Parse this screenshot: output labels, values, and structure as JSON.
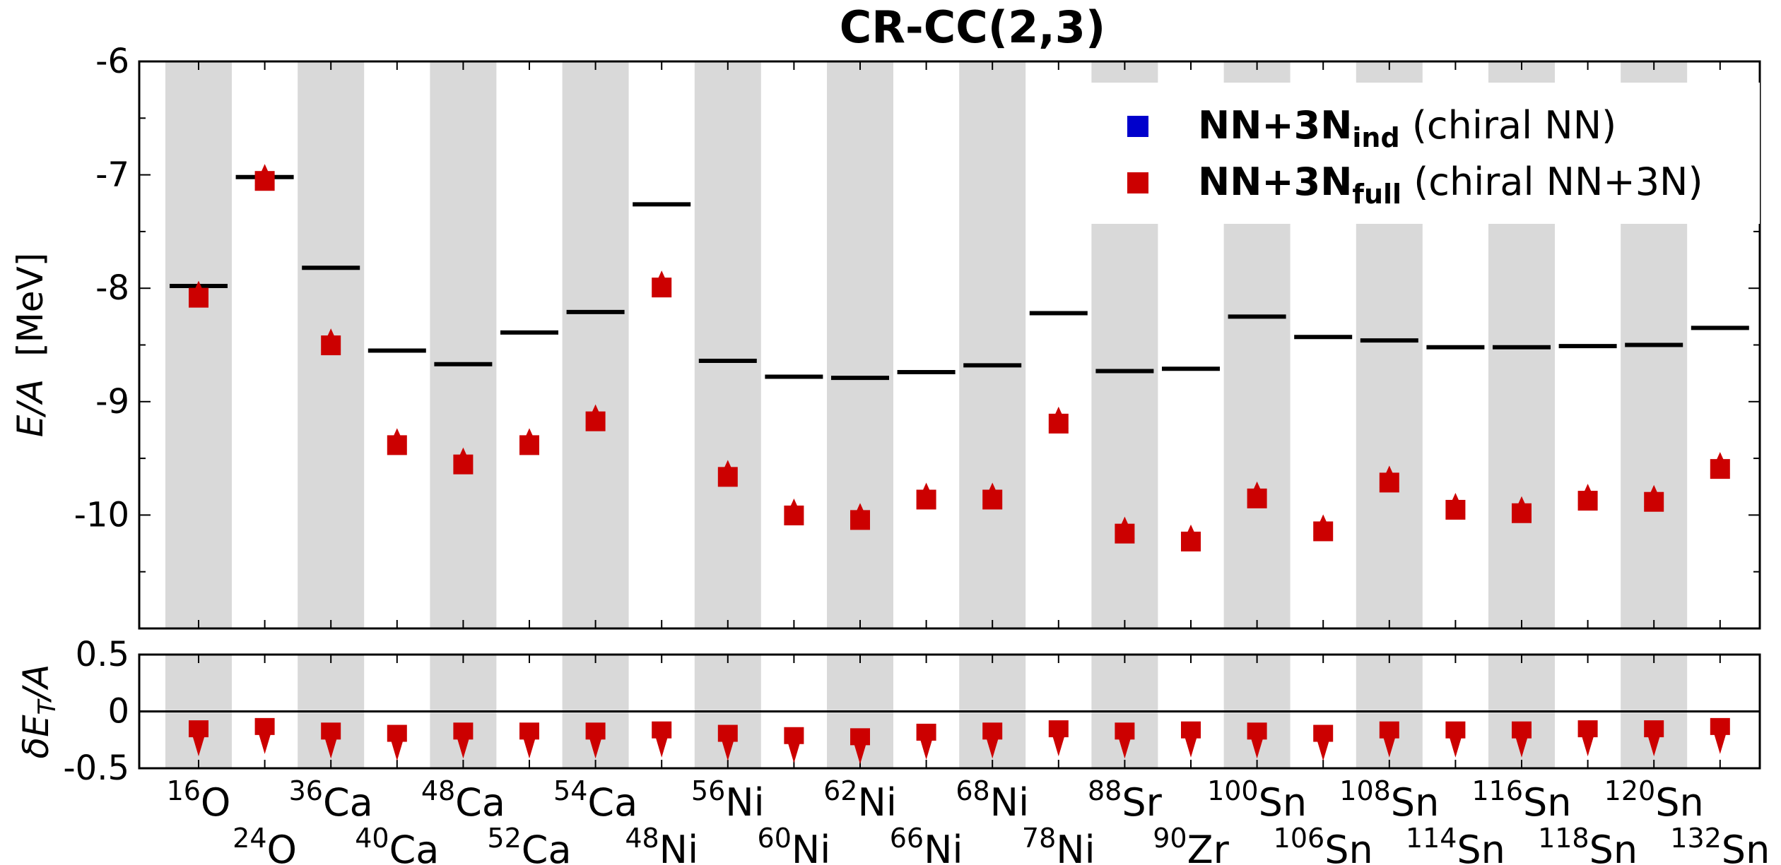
{
  "chart_data": {
    "type": "scatter",
    "title": "CR-CC(2,3)",
    "nuclei": [
      {
        "mass": "16",
        "element": "O"
      },
      {
        "mass": "24",
        "element": "O"
      },
      {
        "mass": "36",
        "element": "Ca"
      },
      {
        "mass": "40",
        "element": "Ca"
      },
      {
        "mass": "48",
        "element": "Ca"
      },
      {
        "mass": "52",
        "element": "Ca"
      },
      {
        "mass": "54",
        "element": "Ca"
      },
      {
        "mass": "48",
        "element": "Ni"
      },
      {
        "mass": "56",
        "element": "Ni"
      },
      {
        "mass": "60",
        "element": "Ni"
      },
      {
        "mass": "62",
        "element": "Ni"
      },
      {
        "mass": "66",
        "element": "Ni"
      },
      {
        "mass": "68",
        "element": "Ni"
      },
      {
        "mass": "78",
        "element": "Ni"
      },
      {
        "mass": "88",
        "element": "Sr"
      },
      {
        "mass": "90",
        "element": "Zr"
      },
      {
        "mass": "100",
        "element": "Sn"
      },
      {
        "mass": "106",
        "element": "Sn"
      },
      {
        "mass": "108",
        "element": "Sn"
      },
      {
        "mass": "114",
        "element": "Sn"
      },
      {
        "mass": "116",
        "element": "Sn"
      },
      {
        "mass": "118",
        "element": "Sn"
      },
      {
        "mass": "120",
        "element": "Sn"
      },
      {
        "mass": "132",
        "element": "Sn"
      }
    ],
    "top_panel": {
      "ylabel": "E/A  [MeV]",
      "ylim": [
        -11.0,
        -6.0
      ],
      "yticks": [
        -6,
        -7,
        -8,
        -9,
        -10
      ],
      "experiment": [
        -7.98,
        -7.02,
        -7.82,
        -8.55,
        -8.67,
        -8.39,
        -8.21,
        -7.26,
        -8.64,
        -8.78,
        -8.79,
        -8.74,
        -8.68,
        -8.22,
        -8.73,
        -8.71,
        -8.25,
        -8.43,
        -8.46,
        -8.52,
        -8.52,
        -8.51,
        -8.5,
        -8.35
      ],
      "series": [
        {
          "name": "NN+3N",
          "subscript": "ind",
          "suffix": " (chiral NN)",
          "color": "#0000cc",
          "values": []
        },
        {
          "name": "NN+3N",
          "subscript": "full",
          "suffix": " (chiral NN+3N)",
          "color": "#cc0000",
          "values": [
            -8.04,
            -7.01,
            -8.46,
            -9.34,
            -9.51,
            -9.34,
            -9.13,
            -7.95,
            -9.62,
            -9.96,
            -10.0,
            -9.82,
            -9.82,
            -9.15,
            -10.12,
            -10.19,
            -9.81,
            -10.1,
            -9.67,
            -9.91,
            -9.94,
            -9.83,
            -9.84,
            -9.55
          ]
        }
      ]
    },
    "bottom_panel": {
      "ylabel": "δE_T/A",
      "ylim": [
        -0.5,
        0.5
      ],
      "yticks": [
        "0.5",
        "0",
        "-0.5"
      ],
      "values": [
        -0.19,
        -0.17,
        -0.21,
        -0.23,
        -0.21,
        -0.21,
        -0.21,
        -0.2,
        -0.23,
        -0.25,
        -0.26,
        -0.22,
        -0.21,
        -0.19,
        -0.21,
        -0.2,
        -0.21,
        -0.23,
        -0.2,
        -0.2,
        -0.2,
        -0.19,
        -0.19,
        -0.17
      ]
    },
    "legend": {
      "position": "top-right"
    },
    "grid": false
  }
}
